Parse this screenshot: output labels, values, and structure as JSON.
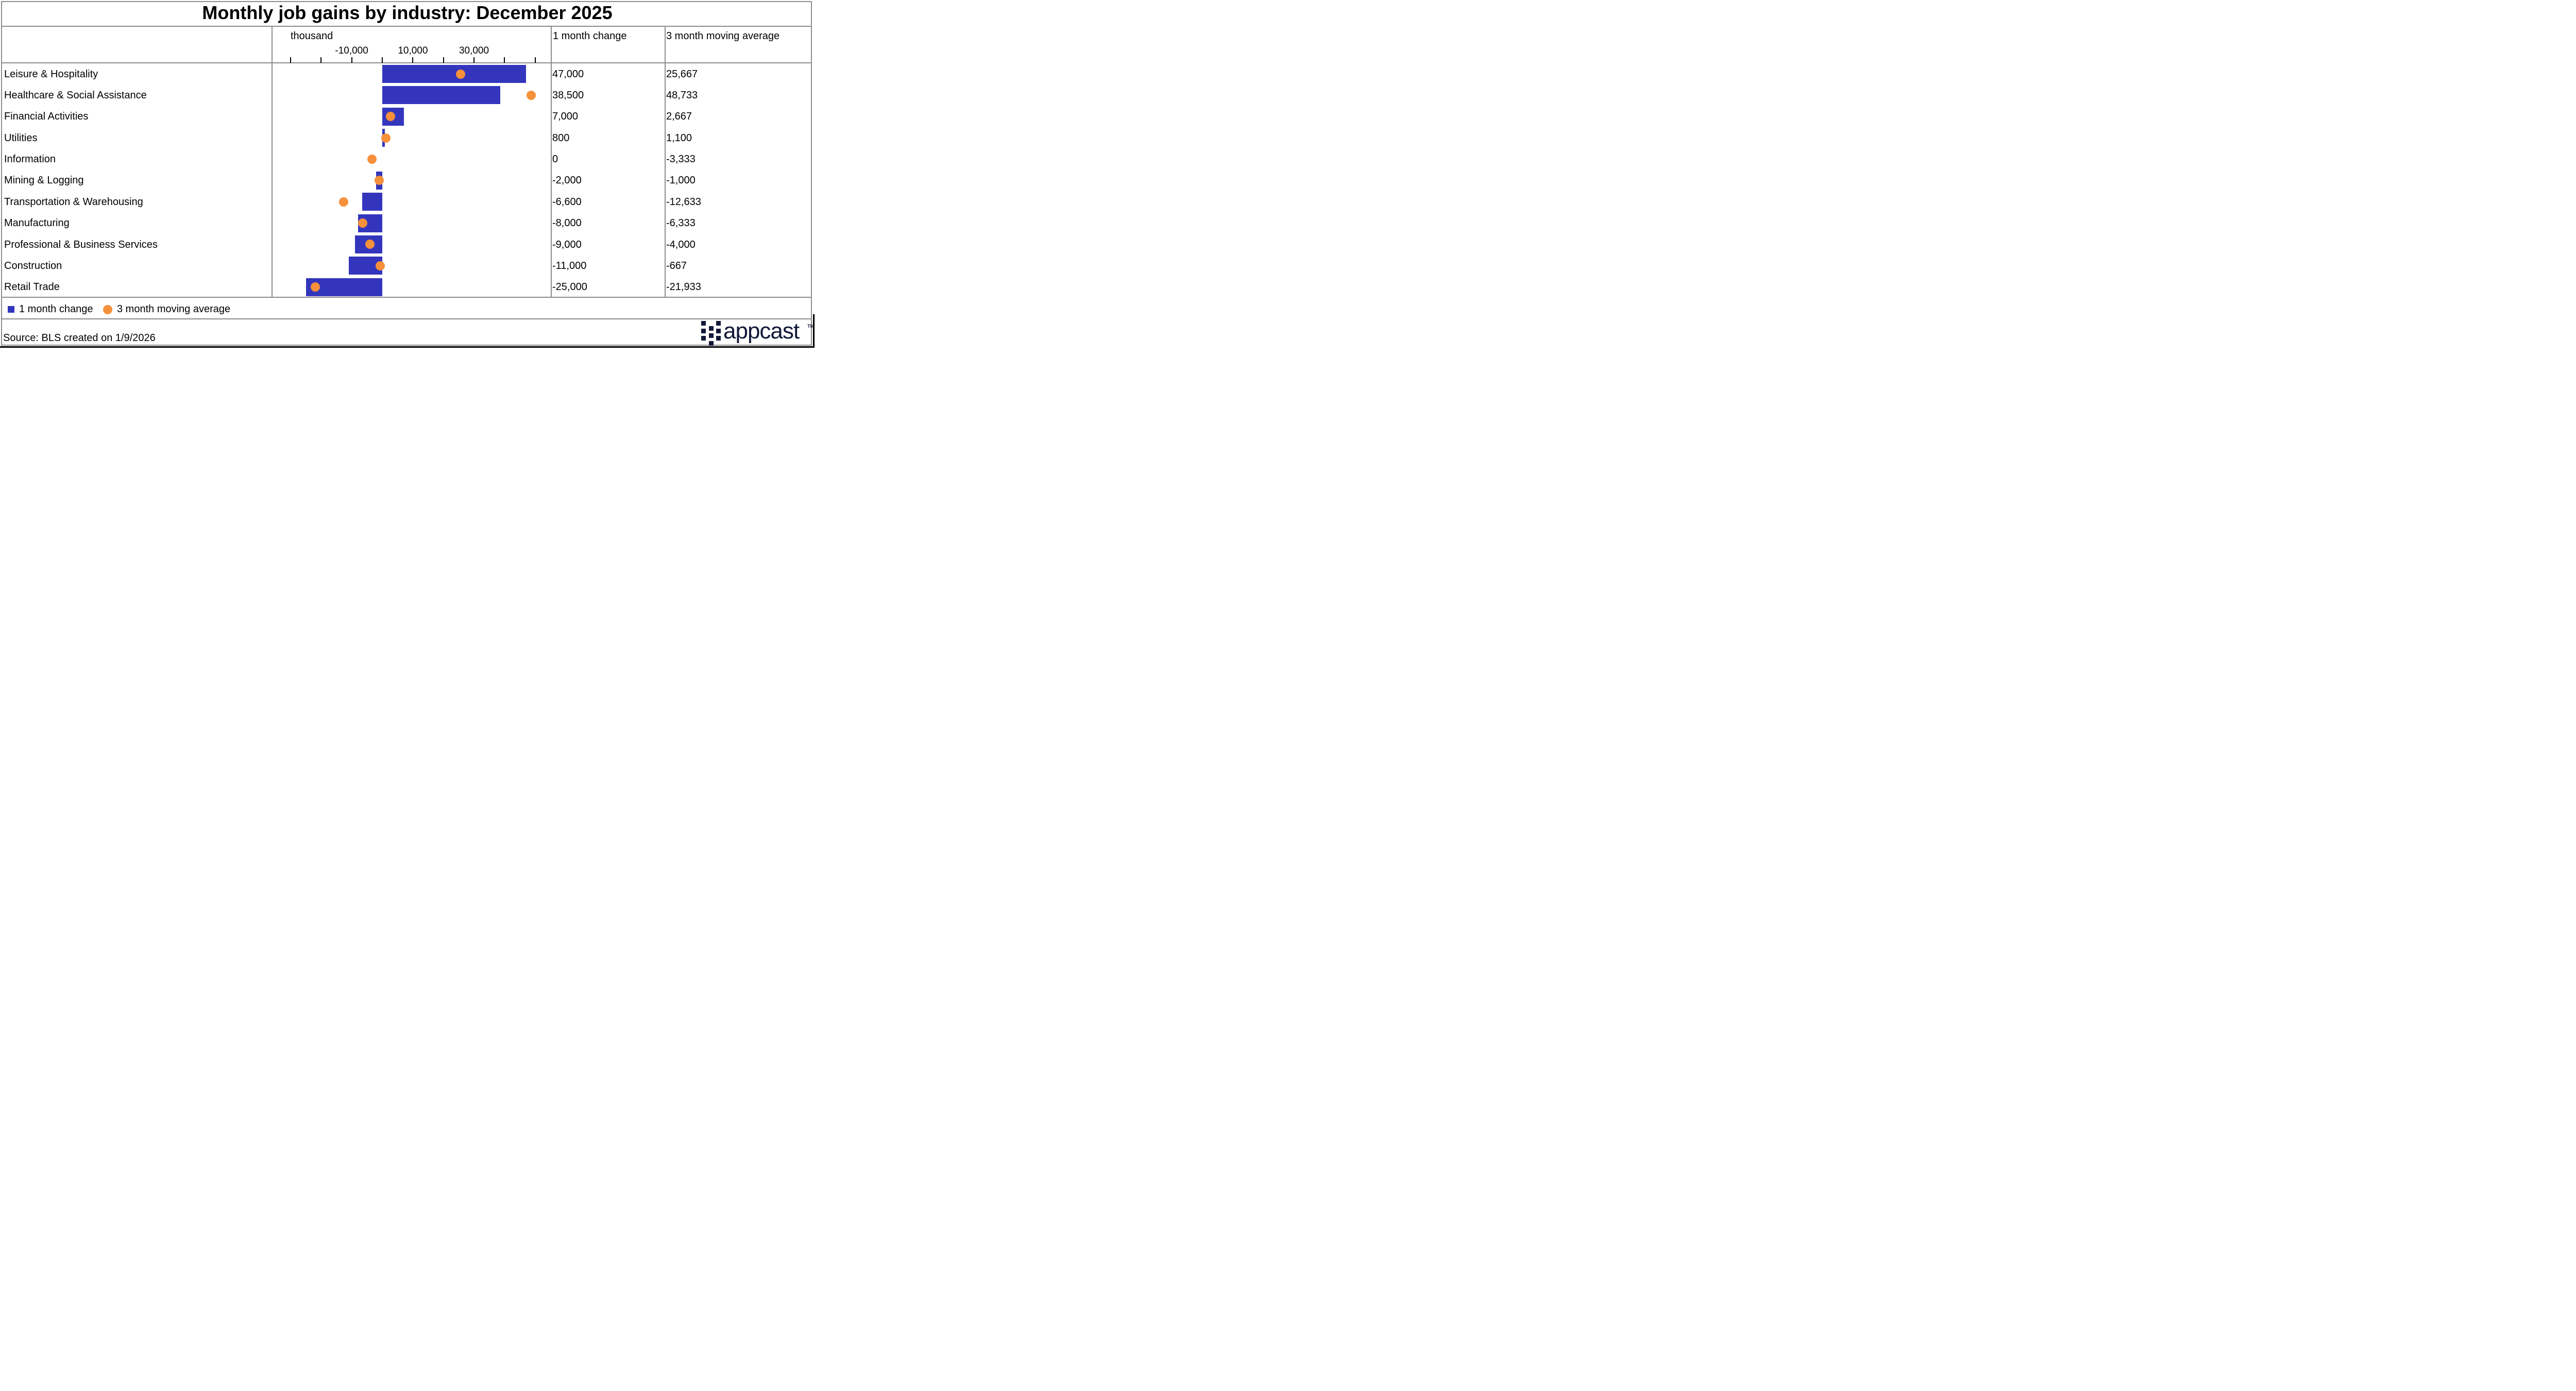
{
  "title": "Monthly job gains by industry: December 2025",
  "table": {
    "unit_label": "thousand",
    "columns": [
      "1 month change",
      "3 month moving average"
    ]
  },
  "chart_data": {
    "type": "bar",
    "orientation": "horizontal",
    "title": "Monthly job gains by industry: December 2025",
    "xlabel": "thousand",
    "xlim": [
      -30000,
      50000
    ],
    "grid": false,
    "legend_position": "bottom",
    "categories": [
      "Leisure & Hospitality",
      "Healthcare & Social Assistance",
      "Financial Activities",
      "Utilities",
      "Information",
      "Mining & Logging",
      "Transportation & Warehousing",
      "Manufacturing",
      "Professional & Business Services",
      "Construction",
      "Retail Trade"
    ],
    "series": [
      {
        "name": "1 month change",
        "style": "bar",
        "color": "#3336bd",
        "values": [
          47000,
          38500,
          7000,
          800,
          0,
          -2000,
          -6600,
          -8000,
          -9000,
          -11000,
          -25000
        ]
      },
      {
        "name": "3 month moving average",
        "style": "point",
        "color": "#f6903a",
        "values": [
          25667,
          48733,
          2667,
          1100,
          -3333,
          -1000,
          -12633,
          -6333,
          -4000,
          -667,
          -21933
        ]
      }
    ],
    "ticks": [
      -30000,
      -20000,
      -10000,
      0,
      10000,
      20000,
      30000,
      40000,
      50000
    ],
    "tick_labels": [
      {
        "value": -10000,
        "label": "-10,000"
      },
      {
        "value": 10000,
        "label": "10,000"
      },
      {
        "value": 30000,
        "label": "30,000"
      }
    ]
  },
  "rows": [
    {
      "label": "Leisure & Hospitality",
      "one_month": "47,000",
      "three_month": "25,667"
    },
    {
      "label": "Healthcare & Social Assistance",
      "one_month": "38,500",
      "three_month": "48,733"
    },
    {
      "label": "Financial Activities",
      "one_month": "7,000",
      "three_month": "2,667"
    },
    {
      "label": "Utilities",
      "one_month": "800",
      "three_month": "1,100"
    },
    {
      "label": "Information",
      "one_month": "0",
      "three_month": "-3,333"
    },
    {
      "label": "Mining & Logging",
      "one_month": "-2,000",
      "three_month": "-1,000"
    },
    {
      "label": "Transportation & Warehousing",
      "one_month": "-6,600",
      "three_month": "-12,633"
    },
    {
      "label": "Manufacturing",
      "one_month": "-8,000",
      "three_month": "-6,333"
    },
    {
      "label": "Professional & Business Services",
      "one_month": "-9,000",
      "three_month": "-4,000"
    },
    {
      "label": "Construction",
      "one_month": "-11,000",
      "three_month": "-667"
    },
    {
      "label": "Retail Trade",
      "one_month": "-25,000",
      "three_month": "-21,933"
    }
  ],
  "legend": {
    "items": [
      {
        "label": "1 month change",
        "marker": "square",
        "color": "#3336bd"
      },
      {
        "label": "3 month moving average",
        "marker": "circle",
        "color": "#f6903a"
      }
    ]
  },
  "footer": {
    "source": "Source: BLS created on 1/9/2026",
    "brand_wordmark": "appcast",
    "brand_trademark": "TM"
  },
  "colors": {
    "bar_blue": "#3336bd",
    "dot_orange": "#f6903a",
    "border_gray": "#8c8c8c",
    "brand_navy": "#121838",
    "tick_black": "#000000"
  }
}
